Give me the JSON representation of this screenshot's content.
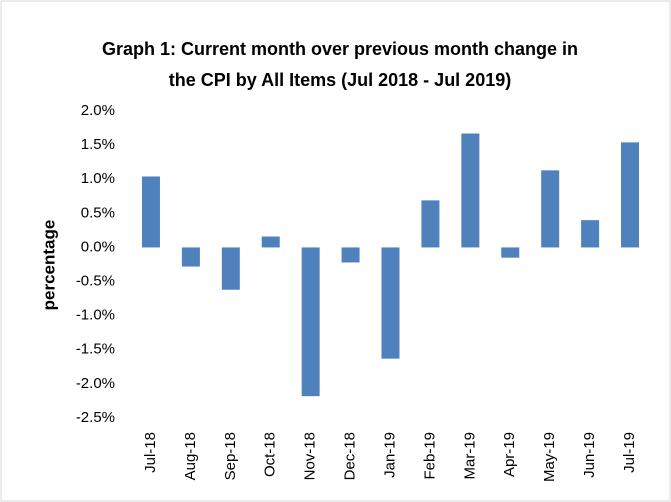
{
  "chart_data": {
    "type": "bar",
    "title": [
      "Graph 1: Current month over previous month change in",
      "the CPI by All Items (Jul 2018 - Jul 2019)"
    ],
    "y_label": "percentage",
    "categories": [
      "Jul-18",
      "Aug-18",
      "Sep-18",
      "Oct-18",
      "Nov-18",
      "Dec-18",
      "Jan-19",
      "Feb-19",
      "Mar-19",
      "Apr-19",
      "May-19",
      "Jun-19",
      "Jul-19"
    ],
    "values": [
      1.04,
      -0.28,
      -0.62,
      0.16,
      -2.18,
      -0.22,
      -1.63,
      0.69,
      1.67,
      -0.15,
      1.13,
      0.4,
      1.54
    ],
    "color": "#4f81bd",
    "ylim": [
      -2.5,
      2.0
    ],
    "yticks": [
      {
        "value": -2.5,
        "label": "-2.5%"
      },
      {
        "value": -2.0,
        "label": "-2.0%"
      },
      {
        "value": -1.5,
        "label": "-1.5%"
      },
      {
        "value": -1.0,
        "label": "-1.0%"
      },
      {
        "value": -0.5,
        "label": "-0.5%"
      },
      {
        "value": 0,
        "label": "0.0%"
      },
      {
        "value": 0.5,
        "label": "0.5%"
      },
      {
        "value": 1.0,
        "label": "1.0%"
      },
      {
        "value": 1.5,
        "label": "1.5%"
      },
      {
        "value": 2.0,
        "label": "2.0%"
      }
    ],
    "grid": false
  }
}
